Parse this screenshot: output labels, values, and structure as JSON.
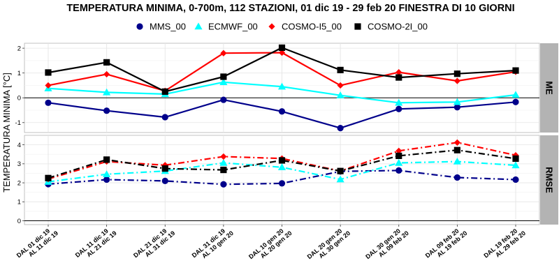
{
  "chart_data": {
    "type": "line",
    "title": "TEMPERATURA MINIMA, 0-700m, 112 STAZIONI, 01 dic 19 - 29 feb 20 FINESTRA DI 10 GIORNI",
    "ylabel": "TEMPERATURA MINIMA [°C]",
    "legend_position": "top",
    "grid": true,
    "categories": [
      [
        "DAL 01 dic 19",
        "AL 11 dic 19"
      ],
      [
        "DAL 11 dic 19",
        "AL 21 dic 19"
      ],
      [
        "DAL 21 dic 19",
        "AL 31 dic 19"
      ],
      [
        "DAL 31 dic 19",
        "AL 10 gen 20"
      ],
      [
        "DAL 10 gen 20",
        "AL 20 gen 20"
      ],
      [
        "DAL 20 gen 20",
        "AL 30 gen 20"
      ],
      [
        "DAL 30 gen 20",
        "AL 09 feb 20"
      ],
      [
        "DAL 09 feb 20",
        "AL 19 feb 20"
      ],
      [
        "DAL 19 feb 20",
        "AL 29 feb 20"
      ]
    ],
    "series_styles": [
      {
        "name": "MMS_00",
        "color": "#00008B",
        "marker": "circle"
      },
      {
        "name": "ECMWF_00",
        "color": "#00FFFF",
        "marker": "triangle"
      },
      {
        "name": "COSMO-I5_00",
        "color": "#FF0000",
        "marker": "diamond"
      },
      {
        "name": "COSMO-2I_00",
        "color": "#000000",
        "marker": "square"
      }
    ],
    "panels": [
      {
        "label": "ME",
        "ylim": [
          -1.4,
          2.2
        ],
        "yticks": [
          -1,
          0,
          1,
          2
        ],
        "zero_line": true,
        "line_style": "solid",
        "series": [
          {
            "name": "MMS_00",
            "values": [
              -0.2,
              -0.52,
              -0.78,
              -0.08,
              -0.55,
              -1.22,
              -0.45,
              -0.38,
              -0.17
            ]
          },
          {
            "name": "ECMWF_00",
            "values": [
              0.38,
              0.22,
              0.15,
              0.63,
              0.45,
              0.1,
              -0.2,
              -0.17,
              0.12
            ]
          },
          {
            "name": "COSMO-I5_00",
            "values": [
              0.5,
              0.95,
              0.28,
              1.8,
              1.82,
              0.5,
              1.03,
              0.68,
              1.05
            ]
          },
          {
            "name": "COSMO-2I_00",
            "values": [
              1.02,
              1.43,
              0.25,
              0.85,
              2.02,
              1.12,
              0.82,
              0.97,
              1.1
            ]
          }
        ]
      },
      {
        "label": "RMSE",
        "ylim": [
          -0.2,
          4.5
        ],
        "yticks": [
          0,
          1,
          2,
          3,
          4
        ],
        "zero_line": true,
        "line_style": "dashdot",
        "series": [
          {
            "name": "MMS_00",
            "values": [
              1.93,
              2.17,
              2.1,
              1.92,
              1.97,
              2.6,
              2.65,
              2.28,
              2.17
            ]
          },
          {
            "name": "ECMWF_00",
            "values": [
              2.05,
              2.45,
              2.62,
              3.05,
              2.82,
              2.18,
              3.05,
              3.12,
              2.92
            ]
          },
          {
            "name": "COSMO-I5_00",
            "values": [
              2.2,
              3.12,
              2.93,
              3.38,
              3.28,
              2.62,
              3.68,
              4.12,
              3.45
            ]
          },
          {
            "name": "COSMO-2I_00",
            "values": [
              2.25,
              3.22,
              2.75,
              2.68,
              3.18,
              2.62,
              3.42,
              3.72,
              3.27
            ]
          }
        ]
      }
    ]
  }
}
